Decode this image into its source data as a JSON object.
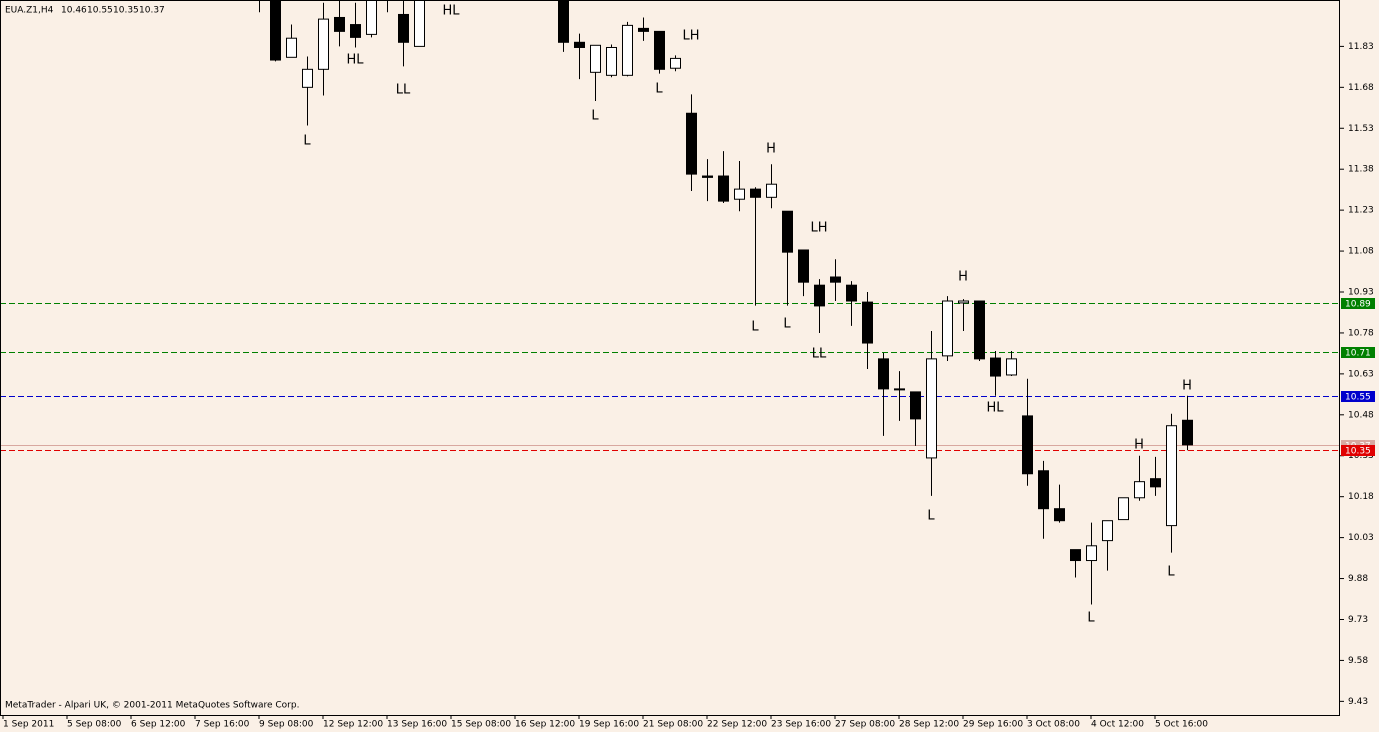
{
  "chart_data": {
    "type": "candlestick",
    "title": "EUA.Z1,H4",
    "footer": "MetaTrader - Alpari UK, © 2001-2011 MetaQuotes Software Corp.",
    "up_color": "#ffffff",
    "down_color": "#000000",
    "outline_color": "#000000",
    "background": "#faf0e6",
    "categories": [
      "1 Sep 2011",
      null,
      null,
      null,
      "5 Sep 08:00",
      null,
      null,
      null,
      "6 Sep 12:00",
      null,
      null,
      null,
      "7 Sep 16:00",
      null,
      null,
      null,
      "9 Sep 08:00",
      null,
      null,
      null,
      "12 Sep 12:00",
      null,
      null,
      null,
      "13 Sep 16:00",
      null,
      null,
      null,
      "15 Sep 08:00",
      null,
      null,
      null,
      "16 Sep 12:00",
      null,
      null,
      null,
      "19 Sep 16:00",
      null,
      null,
      null,
      "21 Sep 08:00",
      null,
      null,
      null,
      "22 Sep 12:00",
      null,
      null,
      null,
      "23 Sep 16:00",
      null,
      null,
      null,
      "27 Sep 08:00",
      null,
      null,
      null,
      "28 Sep 12:00",
      null,
      null,
      null,
      "29 Sep 16:00",
      null,
      null,
      null,
      "3 Oct 08:00",
      null,
      null,
      null,
      "4 Oct 12:00",
      null,
      null,
      null,
      "5 Oct 16:00",
      null,
      null
    ],
    "open": [
      null,
      null,
      null,
      null,
      null,
      null,
      null,
      null,
      null,
      null,
      null,
      null,
      null,
      null,
      null,
      null,
      12.05,
      12.0,
      11.79,
      11.68,
      11.746,
      11.936,
      11.91,
      11.874,
      12.05,
      11.947,
      11.83,
      null,
      null,
      null,
      null,
      null,
      null,
      null,
      null,
      12.0,
      11.845,
      11.735,
      11.724,
      11.724,
      11.896,
      11.885,
      11.75,
      11.585,
      11.355,
      11.355,
      11.27,
      11.307,
      11.277,
      11.226,
      11.084,
      10.955,
      10.985,
      10.955,
      10.893,
      10.685,
      10.575,
      10.564,
      10.322,
      10.696,
      10.89,
      10.897,
      10.688,
      10.626,
      10.476,
      10.275,
      10.136,
      9.986,
      9.946,
      10.019,
      10.096,
      10.176,
      10.246,
      10.074,
      10.46
    ],
    "high": [
      null,
      null,
      null,
      null,
      null,
      null,
      null,
      null,
      null,
      null,
      null,
      null,
      null,
      null,
      null,
      null,
      12.1,
      12.05,
      11.91,
      11.793,
      11.99,
      12.0,
      11.99,
      12.02,
      12.1,
      12.0,
      12.03,
      null,
      null,
      null,
      null,
      null,
      null,
      null,
      null,
      12.05,
      11.877,
      11.834,
      11.837,
      11.92,
      11.936,
      11.885,
      11.797,
      11.654,
      11.417,
      11.446,
      11.41,
      11.314,
      11.398,
      11.226,
      11.084,
      10.977,
      11.05,
      10.97,
      10.93,
      10.707,
      10.64,
      10.564,
      10.787,
      10.915,
      10.904,
      10.897,
      10.714,
      10.714,
      10.612,
      10.311,
      10.224,
      9.986,
      10.085,
      10.092,
      10.176,
      10.33,
      10.326,
      10.484,
      10.55
    ],
    "low": [
      null,
      null,
      null,
      null,
      null,
      null,
      null,
      null,
      null,
      null,
      null,
      null,
      null,
      null,
      null,
      null,
      11.955,
      11.775,
      11.79,
      11.54,
      11.65,
      11.83,
      11.826,
      11.863,
      11.955,
      11.757,
      11.83,
      null,
      null,
      null,
      null,
      null,
      null,
      null,
      null,
      11.81,
      11.71,
      11.63,
      11.717,
      11.72,
      11.85,
      11.73,
      11.739,
      11.3,
      11.263,
      11.256,
      11.226,
      10.88,
      11.237,
      10.88,
      10.915,
      10.78,
      10.897,
      10.806,
      10.648,
      10.403,
      10.458,
      10.366,
      10.183,
      10.677,
      10.787,
      10.677,
      10.55,
      10.622,
      10.22,
      10.026,
      10.085,
      9.884,
      9.785,
      9.909,
      10.096,
      10.165,
      10.183,
      9.975,
      10.35
    ],
    "close": [
      null,
      null,
      null,
      null,
      null,
      null,
      null,
      null,
      null,
      null,
      null,
      null,
      null,
      null,
      null,
      null,
      12.0,
      11.78,
      11.86,
      11.746,
      11.93,
      11.885,
      11.863,
      12.0,
      12.0,
      11.845,
      12.0,
      null,
      null,
      null,
      null,
      null,
      null,
      null,
      null,
      11.845,
      11.826,
      11.834,
      11.826,
      11.907,
      11.885,
      11.746,
      11.786,
      11.362,
      11.35,
      11.263,
      11.307,
      11.277,
      11.325,
      11.076,
      10.966,
      10.879,
      10.966,
      10.897,
      10.743,
      10.575,
      10.575,
      10.465,
      10.685,
      10.897,
      10.897,
      10.685,
      10.622,
      10.685,
      10.264,
      10.136,
      10.092,
      9.946,
      10.0,
      10.092,
      10.176,
      10.235,
      10.216,
      10.44,
      10.37
    ],
    "ylim": [
      9.38,
      12.0
    ],
    "yticks": [
      11.83,
      11.68,
      11.53,
      11.38,
      11.23,
      11.08,
      10.93,
      10.78,
      10.63,
      10.48,
      10.33,
      10.18,
      10.03,
      9.88,
      9.73,
      9.58,
      9.43
    ],
    "levels": [
      {
        "value": 10.89,
        "color": "#008000",
        "style": "dashed"
      },
      {
        "value": 10.71,
        "color": "#008000",
        "style": "dashed"
      },
      {
        "value": 10.55,
        "color": "#0000cc",
        "style": "dashed"
      },
      {
        "value": 10.37,
        "color": "#d8a8a0",
        "style": "solid"
      },
      {
        "value": 10.35,
        "color": "#e00000",
        "style": "dashed"
      }
    ],
    "annotations": [
      "L",
      "HL",
      "LL",
      "HL",
      "L",
      "L",
      "LH",
      "H",
      "L",
      "L",
      "LH",
      "LL",
      "L",
      "H",
      "HL",
      "H",
      "L",
      "L",
      "H"
    ]
  }
}
